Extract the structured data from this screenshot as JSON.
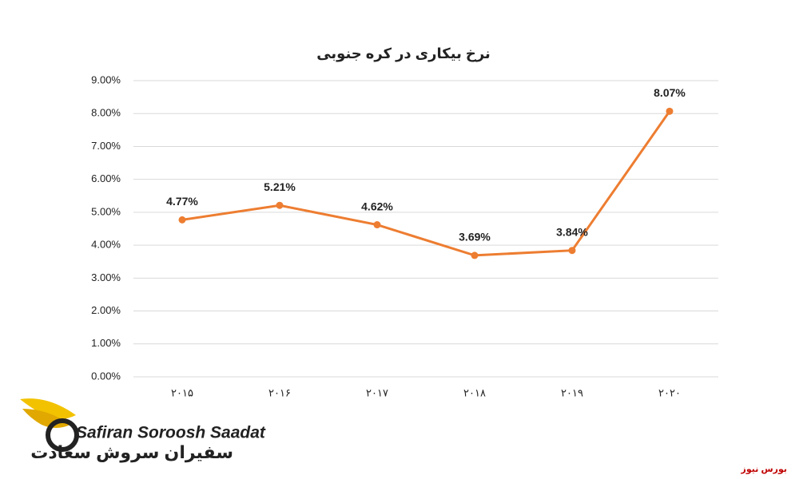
{
  "chart_data": {
    "type": "line",
    "title": "نرخ بیکاری در کره جنوبی",
    "categories": [
      "۲۰۱۵",
      "۲۰۱۶",
      "۲۰۱۷",
      "۲۰۱۸",
      "۲۰۱۹",
      "۲۰۲۰"
    ],
    "series": [
      {
        "name": "نرخ بیکاری",
        "color": "#ed7d31",
        "values": [
          4.77,
          5.21,
          4.62,
          3.69,
          3.84,
          8.07
        ],
        "value_labels": [
          "4.77%",
          "5.21%",
          "4.62%",
          "3.69%",
          "3.84%",
          "8.07%"
        ]
      }
    ],
    "ylim": [
      0,
      9
    ],
    "yticks": [
      {
        "value": 0,
        "label": "0.00%"
      },
      {
        "value": 1,
        "label": "1.00%"
      },
      {
        "value": 2,
        "label": "2.00%"
      },
      {
        "value": 3,
        "label": "3.00%"
      },
      {
        "value": 4,
        "label": "4.00%"
      },
      {
        "value": 5,
        "label": "5.00%"
      },
      {
        "value": 6,
        "label": "6.00%"
      },
      {
        "value": 7,
        "label": "7.00%"
      },
      {
        "value": 8,
        "label": "8.00%"
      },
      {
        "value": 9,
        "label": "9.00%"
      }
    ],
    "grid": true
  },
  "logo": {
    "name_en": "Safiran Soroosh Saadat",
    "name_fa": "سفیران سروش سعادت"
  },
  "source": "بورس نیوز"
}
